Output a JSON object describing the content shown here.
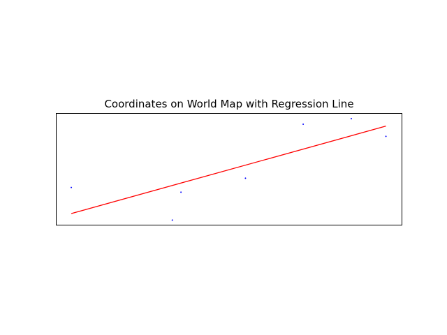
{
  "chart_data": {
    "type": "scatter",
    "title": "Coordinates on World Map with Regression Line",
    "xlabel": "",
    "ylabel": "",
    "axis_ticks": false,
    "grid": false,
    "xlim": [
      -180,
      180
    ],
    "ylim": [
      -60,
      60
    ],
    "points": [
      {
        "x": -164,
        "y": -20
      },
      {
        "x": -59,
        "y": -55
      },
      {
        "x": -50,
        "y": -25
      },
      {
        "x": 17,
        "y": -10
      },
      {
        "x": 77,
        "y": 48
      },
      {
        "x": 127,
        "y": 54
      },
      {
        "x": 163,
        "y": 35
      }
    ],
    "regression_line": {
      "x1": -164,
      "y1": -48,
      "x2": 163,
      "y2": 46
    },
    "colors": {
      "points": "#0000ff",
      "line": "#ff0000",
      "frame": "#000000"
    }
  }
}
